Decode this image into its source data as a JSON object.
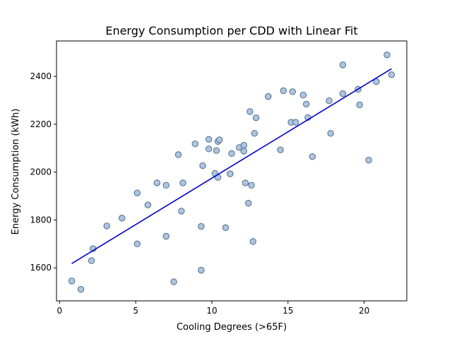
{
  "chart_data": {
    "type": "scatter",
    "title": "Energy Consumption per CDD with Linear Fit",
    "xlabel": "Cooling Degrees (>65F)",
    "ylabel": "Energy Consumption (kWh)",
    "xlim": [
      -0.2,
      22.8
    ],
    "ylim": [
      1462,
      2548
    ],
    "xticks": [
      0,
      5,
      10,
      15,
      20
    ],
    "yticks": [
      1600,
      1800,
      2000,
      2200,
      2400
    ],
    "grid": false,
    "legend": "none",
    "colors": {
      "point_fill": "#b0c4de",
      "point_edge": "#4a6f8f",
      "fit_line": "#0000cc"
    },
    "series": [
      {
        "kind": "points",
        "x": [
          0.8,
          1.4,
          2.1,
          2.2,
          3.1,
          4.1,
          5.1,
          5.1,
          5.8,
          6.4,
          7.0,
          7.0,
          7.5,
          7.8,
          8.0,
          8.1,
          8.9,
          9.3,
          9.3,
          9.4,
          9.8,
          9.8,
          10.2,
          10.3,
          10.4,
          10.4,
          10.5,
          10.9,
          11.2,
          11.3,
          11.8,
          12.1,
          12.1,
          12.2,
          12.4,
          12.5,
          12.6,
          12.7,
          12.8,
          12.9,
          13.7,
          14.5,
          14.7,
          15.2,
          15.3,
          15.5,
          16.0,
          16.2,
          16.3,
          16.6,
          17.7,
          17.8,
          18.6,
          18.6,
          19.6,
          19.7,
          20.3,
          20.8,
          21.5,
          21.8
        ],
        "y": [
          1545,
          1510,
          1630,
          1680,
          1775,
          1808,
          1913,
          1700,
          1863,
          1955,
          1945,
          1732,
          1542,
          2073,
          1837,
          1955,
          2118,
          1773,
          1590,
          2027,
          2137,
          2097,
          1995,
          2090,
          2128,
          1978,
          2135,
          1768,
          1993,
          2078,
          2103,
          2112,
          2088,
          1955,
          1870,
          2253,
          1945,
          1710,
          2162,
          2227,
          2316,
          2093,
          2340,
          2208,
          2336,
          2208,
          2322,
          2284,
          2228,
          2065,
          2298,
          2162,
          2448,
          2328,
          2346,
          2281,
          2050,
          2378,
          2490,
          2407
        ]
      },
      {
        "kind": "fit",
        "x": [
          0.8,
          21.8
        ],
        "y": [
          1618,
          2432
        ]
      }
    ]
  }
}
